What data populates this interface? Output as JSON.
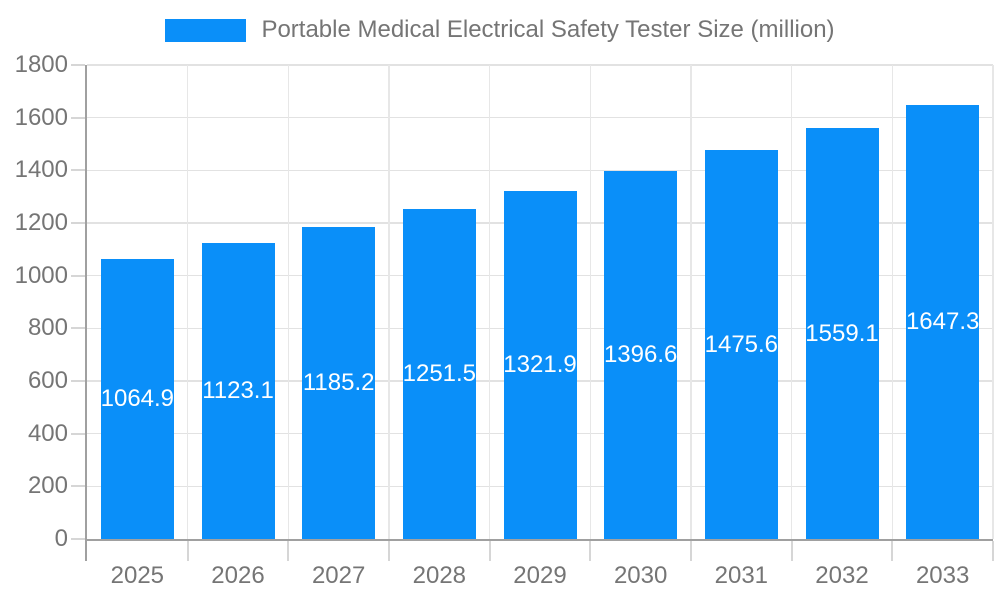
{
  "legend": {
    "label": "Portable Medical Electrical Safety Tester Size (million)"
  },
  "chart_data": {
    "type": "bar",
    "title": "Portable Medical Electrical Safety Tester Size (million)",
    "categories": [
      "2025",
      "2026",
      "2027",
      "2028",
      "2029",
      "2030",
      "2031",
      "2032",
      "2033"
    ],
    "values": [
      1064.9,
      1123.1,
      1185.2,
      1251.5,
      1321.9,
      1396.6,
      1475.6,
      1559.1,
      1647.3
    ],
    "xlabel": "",
    "ylabel": "",
    "ylim": [
      0,
      1800
    ],
    "ytick_step": 200,
    "yticks": [
      0,
      200,
      400,
      600,
      800,
      1000,
      1200,
      1400,
      1600,
      1800
    ],
    "grid": true,
    "legend_position": "top-center",
    "value_label_position": "inside-center",
    "colors": {
      "bar": "#0a8ff9",
      "bar_label": "#ffffff",
      "axis_text": "#757575",
      "axis_line": "#a0a0a0",
      "gridline": "#e2e2e2",
      "vgridline": "#e7e7e7",
      "tick": "#d6d6d6",
      "background": "#ffffff"
    }
  }
}
